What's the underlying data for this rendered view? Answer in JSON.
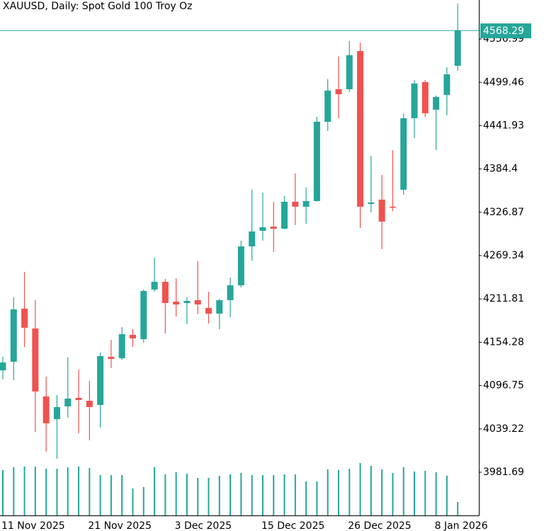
{
  "chart_data": {
    "type": "candlestick",
    "title": "XAUUSD, Daily:  Spot Gold 100 Troy Oz",
    "up_color": "#26a69a",
    "down_color": "#ef5350",
    "categories": [
      "11 Nov 2025",
      null,
      null,
      null,
      null,
      null,
      null,
      null,
      "21 Nov 2025",
      null,
      null,
      null,
      null,
      null,
      null,
      null,
      "3 Dec 2025",
      null,
      null,
      null,
      null,
      null,
      null,
      null,
      "15 Dec 2025",
      null,
      null,
      null,
      null,
      null,
      null,
      null,
      "26 Dec 2025",
      null,
      null,
      null,
      null,
      null,
      null,
      null,
      "8 Jan 2026",
      null,
      null
    ],
    "open": [
      4117.0,
      4128.4,
      4198.9,
      4172.6,
      4082.3,
      4052.2,
      4069.1,
      4080.4,
      4076.6,
      4071.0,
      4135.0,
      4133.1,
      4164.1,
      4158.4,
      4224.3,
      4234.6,
      4208.3,
      4206.4,
      4210.2,
      4199.8,
      4192.3,
      4210.2,
      4229.9,
      4281.6,
      4302.3,
      4307.9,
      4305.1,
      4340.9,
      4334.3,
      4341.8,
      4447.1,
      4490.3,
      4490.3,
      4541.1,
      4338.0,
      4343.7,
      4334.3,
      4356.8,
      4451.8,
      4499.8,
      4463.1,
      4482.8,
      4521.4
    ],
    "high": [
      4135.0,
      4213.9,
      4247.8,
      4210.2,
      4108.6,
      4084.2,
      4134.0,
      4118.0,
      4103.0,
      4140.6,
      4157.5,
      4174.4,
      4171.6,
      4224.3,
      4266.6,
      4238.4,
      4239.3,
      4213.9,
      4261.9,
      4221.4,
      4212.0,
      4240.2,
      4289.1,
      4356.8,
      4353.1,
      4340.9,
      4348.4,
      4378.4,
      4359.7,
      4453.7,
      4503.5,
      4533.9,
      4554.3,
      4552.4,
      4401.9,
      4376.6,
      4409.5,
      4458.4,
      4502.6,
      4502.6,
      4481.9,
      4519.5,
      4604.1
    ],
    "low": [
      4105.0,
      4103.9,
      4148.1,
      4035.3,
      4009.0,
      3999.6,
      4054.1,
      4033.4,
      4024.0,
      4040.9,
      4119.9,
      4131.2,
      4148.1,
      4153.7,
      4221.4,
      4165.9,
      4188.5,
      4178.2,
      4191.4,
      4179.1,
      4171.6,
      4187.6,
      4227.1,
      4262.8,
      4289.1,
      4274.1,
      4304.2,
      4309.8,
      4311.7,
      4340.9,
      4434.9,
      4451.8,
      4486.6,
      4306.0,
      4326.8,
      4277.9,
      4328.6,
      4350.2,
      4425.5,
      4453.7,
      4409.5,
      4455.6,
      4514.8
    ],
    "close": [
      4127.4,
      4197.9,
      4173.5,
      4088.9,
      4046.6,
      4068.2,
      4079.5,
      4077.6,
      4068.2,
      4135.9,
      4132.1,
      4165.0,
      4159.4,
      4222.4,
      4234.6,
      4206.4,
      4204.5,
      4209.2,
      4204.5,
      4192.3,
      4210.2,
      4229.9,
      4281.6,
      4301.4,
      4307.0,
      4305.1,
      4340.9,
      4334.3,
      4341.8,
      4447.1,
      4488.5,
      4483.7,
      4535.5,
      4334.3,
      4339.9,
      4314.5,
      4333.3,
      4451.8,
      4497.9,
      4458.4,
      4480.0,
      4510.1,
      4568.29
    ],
    "volumes": [
      64,
      68,
      69,
      69,
      66,
      66,
      68,
      69,
      67,
      57,
      57,
      57,
      38,
      40,
      68,
      58,
      61,
      59,
      53,
      53,
      56,
      58,
      60,
      57,
      57,
      57,
      58,
      58,
      48,
      48,
      65,
      64,
      66,
      74,
      70,
      65,
      60,
      68,
      62,
      63,
      61,
      56,
      19
    ],
    "volume_color": "#26a69a",
    "volume_lim": [
      0,
      100
    ],
    "current_price": {
      "value": 4568.29,
      "label": "4568.29"
    },
    "ylim": [
      3924.3,
      4608.8
    ],
    "yticks": [
      3981.69,
      4039.22,
      4096.75,
      4154.28,
      4211.81,
      4269.34,
      4326.87,
      4384.4,
      4441.93,
      4499.46,
      4556.99
    ],
    "grid": false
  }
}
